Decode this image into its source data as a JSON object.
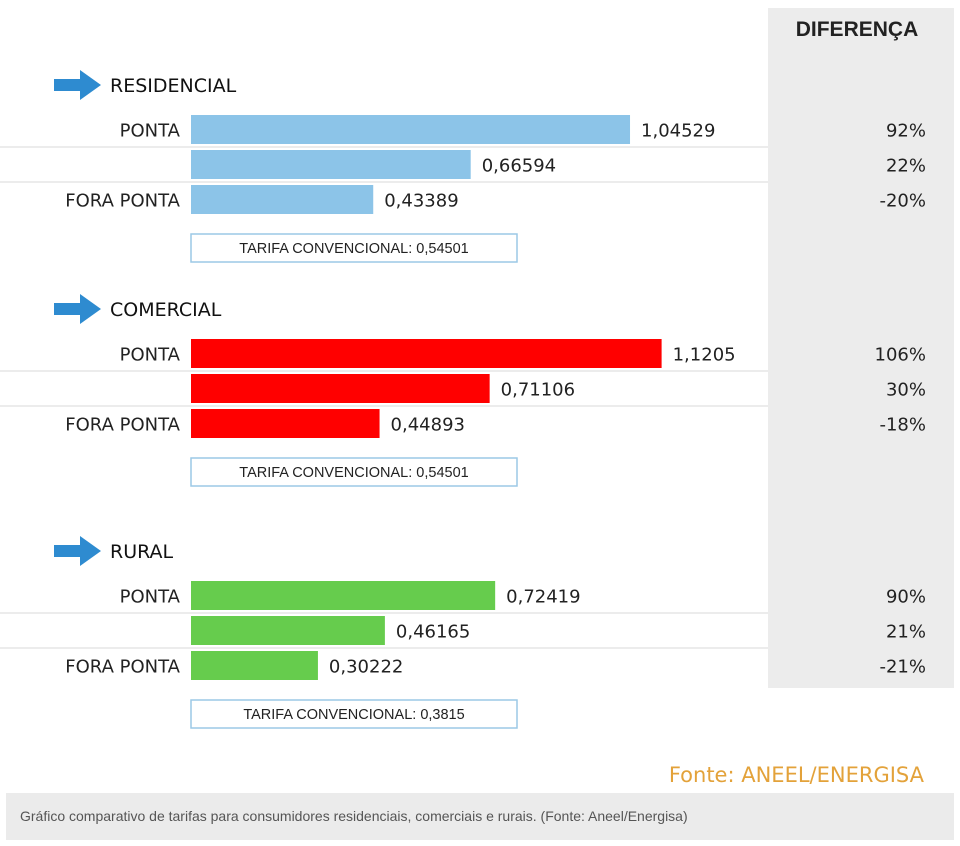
{
  "chart_data": {
    "type": "bar",
    "orientation": "horizontal",
    "difference_header": "DIFERENÇA",
    "groups": [
      {
        "name": "RESIDENCIAL",
        "color": "#8cc4e8",
        "rows": [
          {
            "label": "PONTA",
            "value": 1.04529,
            "value_label": "1,04529",
            "diff": "92%"
          },
          {
            "label": "",
            "value": 0.66594,
            "value_label": "0,66594",
            "diff": "22%"
          },
          {
            "label": "FORA PONTA",
            "value": 0.43389,
            "value_label": "0,43389",
            "diff": "-20%"
          }
        ],
        "tarifa": "TARIFA CONVENCIONAL: 0,54501"
      },
      {
        "name": "COMERCIAL",
        "color": "#ff0000",
        "rows": [
          {
            "label": "PONTA",
            "value": 1.1205,
            "value_label": "1,1205",
            "diff": "106%"
          },
          {
            "label": "",
            "value": 0.71106,
            "value_label": "0,71106",
            "diff": "30%"
          },
          {
            "label": "FORA PONTA",
            "value": 0.44893,
            "value_label": "0,44893",
            "diff": "-18%"
          }
        ],
        "tarifa": "TARIFA CONVENCIONAL: 0,54501"
      },
      {
        "name": "RURAL",
        "color": "#66cc4d",
        "rows": [
          {
            "label": "PONTA",
            "value": 0.72419,
            "value_label": "0,72419",
            "diff": "90%"
          },
          {
            "label": "",
            "value": 0.46165,
            "value_label": "0,46165",
            "diff": "21%"
          },
          {
            "label": "FORA PONTA",
            "value": 0.30222,
            "value_label": "0,30222",
            "diff": "-21%"
          }
        ],
        "tarifa": "TARIFA CONVENCIONAL: 0,3815"
      }
    ],
    "source": "Fonte: ANEEL/ENERGISA"
  },
  "caption": "Gráfico comparativo de tarifas para consumidores residenciais, comerciais e rurais. (Fonte: Aneel/Energisa)",
  "colors": {
    "difference_panel": "#ececec",
    "arrow": "#2e8bd0",
    "source_text": "#e3a23a",
    "tarifa_border": "#9cc9e6"
  }
}
